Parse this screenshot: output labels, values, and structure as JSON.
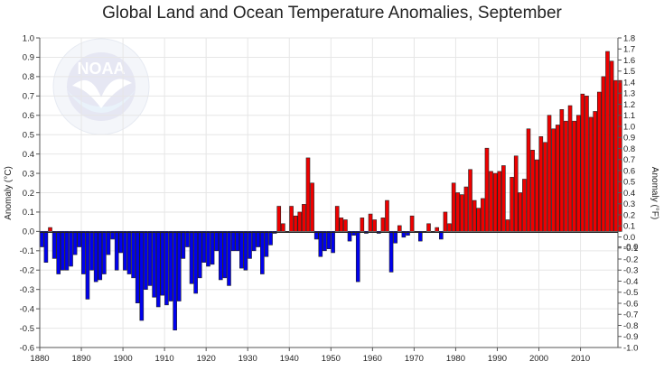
{
  "chart_data": {
    "type": "bar",
    "title": "Global Land and Ocean Temperature Anomalies, September",
    "xlabel": "",
    "ylabel_left": "Anomaly (°C)",
    "ylabel_right": "Anomaly (°F)",
    "xlim": [
      1880,
      2019
    ],
    "ylim_left": [
      -0.6,
      1.0
    ],
    "ylim_right": [
      -1.0,
      1.8
    ],
    "x_ticks": [
      "1880",
      "1890",
      "1900",
      "1910",
      "1920",
      "1930",
      "1940",
      "1950",
      "1960",
      "1970",
      "1980",
      "1990",
      "2000",
      "2010"
    ],
    "y_ticks_left": [
      "1.0",
      "0.9",
      "0.8",
      "0.7",
      "0.6",
      "0.5",
      "0.4",
      "0.3",
      "0.2",
      "0.1",
      "0.0",
      "-0.1",
      "-0.2",
      "-0.3",
      "-0.4",
      "-0.5",
      "-0.6"
    ],
    "y_ticks_right": [
      "1.8",
      "1.7",
      "1.6",
      "1.5",
      "1.4",
      "1.3",
      "1.2",
      "1.1",
      "1.0",
      "0.9",
      "0.8",
      "0.7",
      "0.6",
      "0.5",
      "0.4",
      "0.3",
      "0.2",
      "0.1",
      "0.0",
      "-0.0",
      "-0.1",
      "-0.2",
      "-0.3",
      "-0.4",
      "-0.5",
      "-0.6",
      "-0.7",
      "-0.8",
      "-0.9",
      "-1.0"
    ],
    "grid": true,
    "years_start": 1880,
    "values": [
      -0.08,
      -0.16,
      0.02,
      -0.14,
      -0.22,
      -0.2,
      -0.2,
      -0.18,
      -0.12,
      -0.08,
      -0.22,
      -0.35,
      -0.2,
      -0.26,
      -0.25,
      -0.22,
      -0.12,
      -0.04,
      -0.2,
      -0.11,
      -0.2,
      -0.22,
      -0.24,
      -0.37,
      -0.46,
      -0.3,
      -0.28,
      -0.34,
      -0.39,
      -0.33,
      -0.38,
      -0.36,
      -0.51,
      -0.36,
      -0.14,
      -0.08,
      -0.27,
      -0.32,
      -0.24,
      -0.16,
      -0.18,
      -0.17,
      -0.1,
      -0.25,
      -0.24,
      -0.28,
      -0.1,
      -0.1,
      -0.19,
      -0.2,
      -0.14,
      -0.1,
      -0.08,
      -0.22,
      -0.13,
      -0.07,
      -0.01,
      0.13,
      0.04,
      0.0,
      0.13,
      0.08,
      0.1,
      0.14,
      0.38,
      0.25,
      -0.04,
      -0.13,
      -0.1,
      -0.09,
      -0.11,
      0.13,
      0.07,
      0.06,
      -0.05,
      -0.02,
      -0.26,
      0.07,
      -0.01,
      0.09,
      0.06,
      -0.01,
      0.07,
      0.16,
      -0.21,
      -0.06,
      0.03,
      -0.03,
      -0.02,
      0.08,
      0.0,
      -0.05,
      0.0,
      0.04,
      0.0,
      0.02,
      -0.04,
      0.1,
      0.04,
      0.25,
      0.2,
      0.19,
      0.23,
      0.32,
      0.16,
      0.12,
      0.17,
      0.43,
      0.31,
      0.3,
      0.31,
      0.34,
      0.06,
      0.28,
      0.39,
      0.2,
      0.27,
      0.53,
      0.42,
      0.37,
      0.49,
      0.46,
      0.6,
      0.53,
      0.55,
      0.63,
      0.57,
      0.65,
      0.57,
      0.6,
      0.71,
      0.7,
      0.59,
      0.62,
      0.72,
      0.8,
      0.93,
      0.88,
      0.78,
      0.78
    ]
  }
}
